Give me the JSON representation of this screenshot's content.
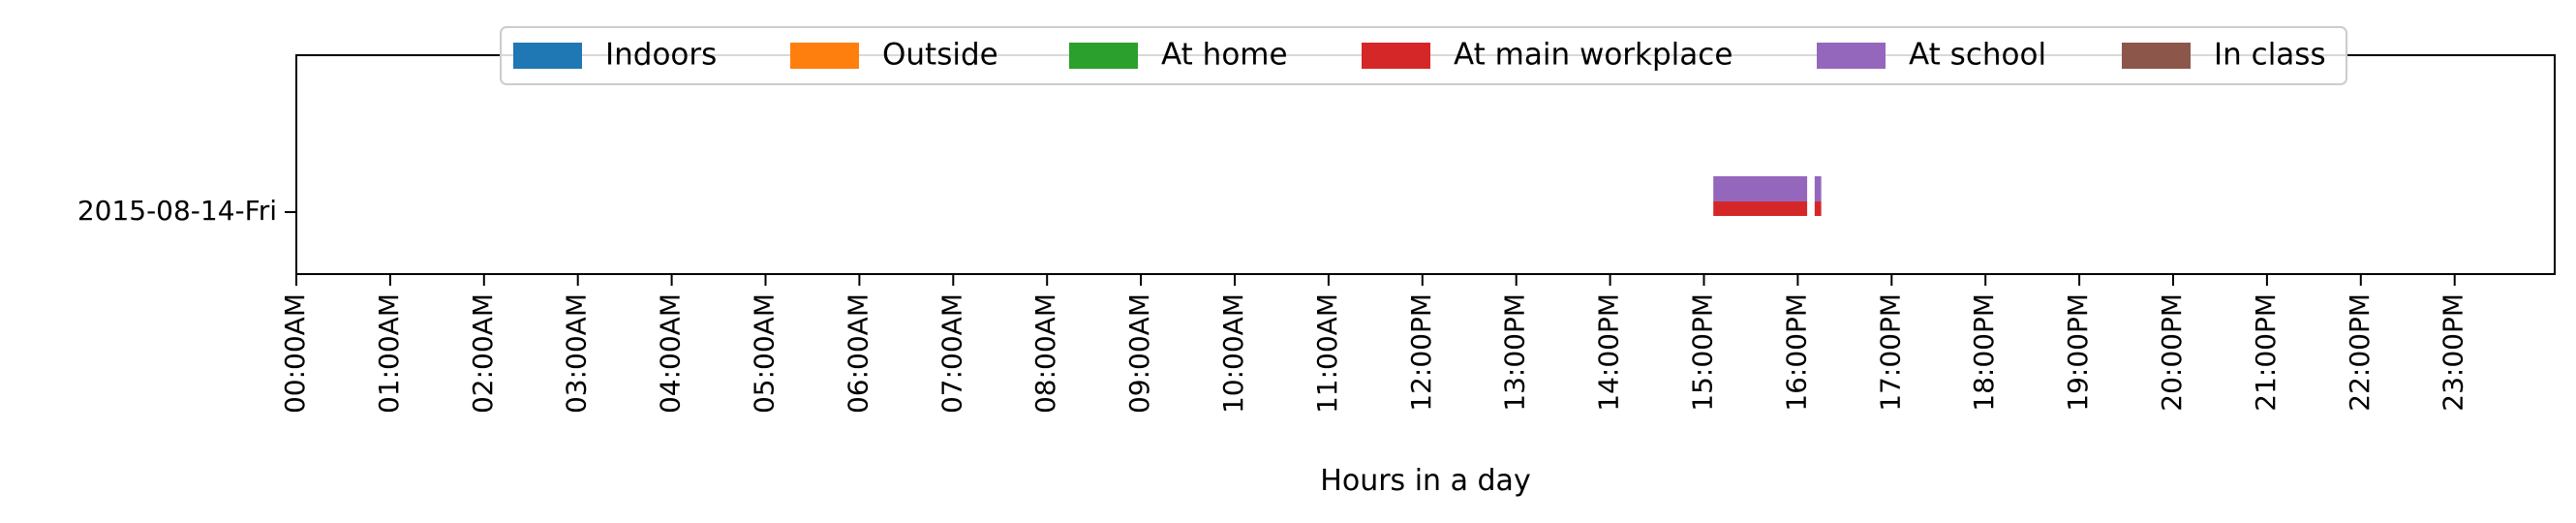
{
  "chart_data": {
    "type": "bar",
    "orientation": "horizontal-timeline",
    "xlabel": "Hours in a day",
    "ylabel": "",
    "xlim": [
      0,
      24
    ],
    "x_ticks": [
      "00:00AM",
      "01:00AM",
      "02:00AM",
      "03:00AM",
      "04:00AM",
      "05:00AM",
      "06:00AM",
      "07:00AM",
      "08:00AM",
      "09:00AM",
      "10:00AM",
      "11:00AM",
      "12:00PM",
      "13:00PM",
      "14:00PM",
      "15:00PM",
      "16:00PM",
      "17:00PM",
      "18:00PM",
      "19:00PM",
      "20:00PM",
      "21:00PM",
      "22:00PM",
      "23:00PM"
    ],
    "categories": [
      "2015-08-14-Fri"
    ],
    "legend_position": "top-center",
    "grid": false,
    "series": [
      {
        "name": "Indoors",
        "color": "#1f77b4",
        "intervals": []
      },
      {
        "name": "Outside",
        "color": "#ff7f0e",
        "intervals": []
      },
      {
        "name": "At home",
        "color": "#2ca02c",
        "intervals": []
      },
      {
        "name": "At main workplace",
        "color": "#d62728",
        "intervals": [
          [
            15.1,
            16.1
          ],
          [
            16.18,
            16.25
          ]
        ]
      },
      {
        "name": "At school",
        "color": "#9467bd",
        "intervals": [
          [
            15.1,
            16.1
          ],
          [
            16.18,
            16.25
          ]
        ]
      },
      {
        "name": "In class",
        "color": "#8c564b",
        "intervals": []
      }
    ]
  }
}
